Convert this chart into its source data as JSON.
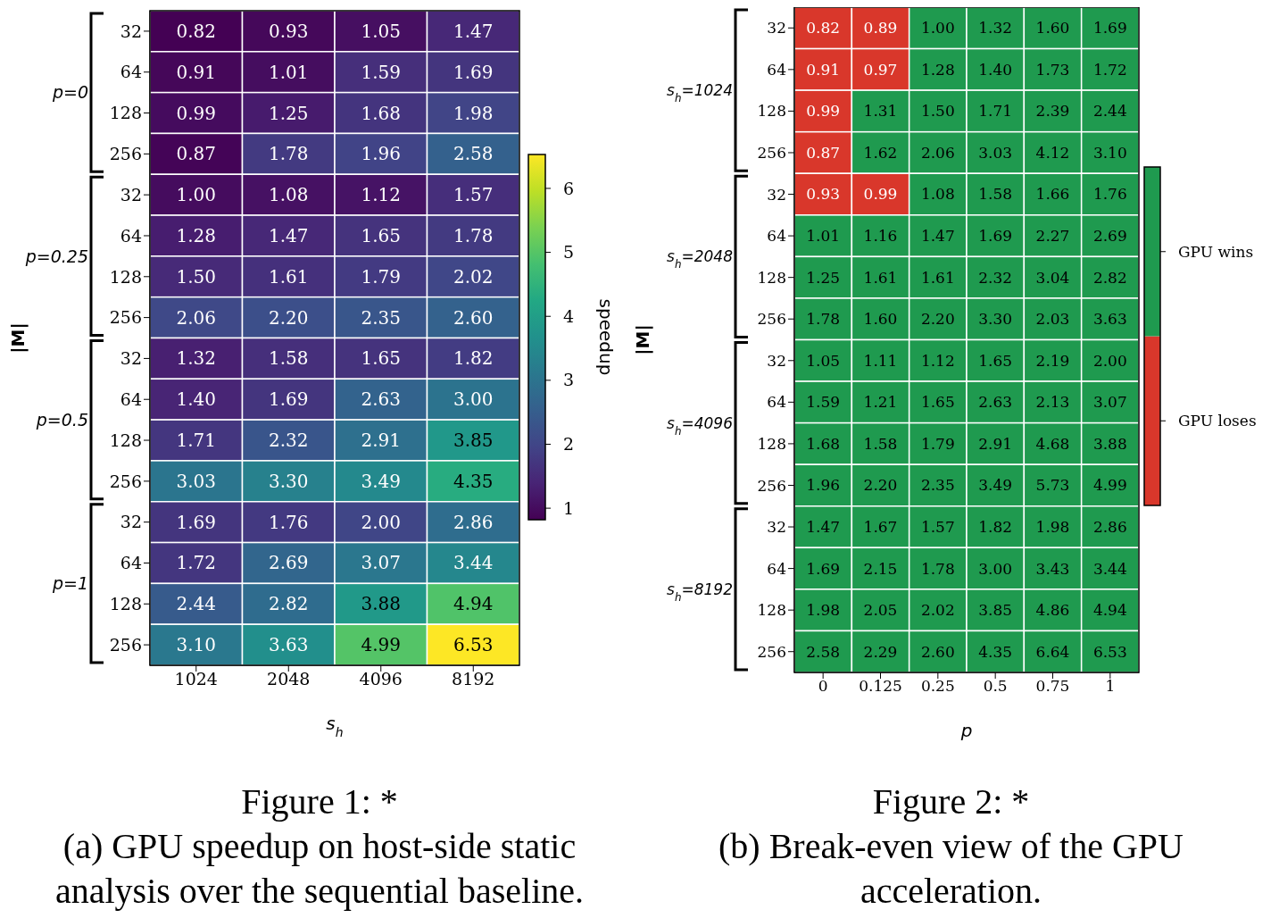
{
  "chart_data": [
    {
      "type": "heatmap",
      "title": "Figure 1: *",
      "subtitle": "(a) GPU speedup on host-side static analysis over the sequential baseline.",
      "xlabel": "s$_{h}$",
      "ylabel": "|M|",
      "clabel": "speedup",
      "categories": [
        "1024",
        "2048",
        "4096",
        "8192"
      ],
      "y_categories": [
        "32",
        "64",
        "128",
        "256",
        "32",
        "64",
        "128",
        "256",
        "32",
        "64",
        "128",
        "256",
        "32",
        "64",
        "128",
        "256"
      ],
      "annotations": [
        "p=0",
        "p=0.25",
        "p=0.5",
        "p=1"
      ],
      "cells": [
        [
          0.82,
          0.93,
          1.05,
          1.47
        ],
        [
          0.91,
          1.01,
          1.59,
          1.69
        ],
        [
          0.99,
          1.25,
          1.68,
          1.98
        ],
        [
          0.87,
          1.78,
          1.96,
          2.58
        ],
        [
          1.0,
          1.08,
          1.12,
          1.57
        ],
        [
          1.28,
          1.47,
          1.65,
          1.78
        ],
        [
          1.5,
          1.61,
          1.79,
          2.02
        ],
        [
          2.06,
          2.2,
          2.35,
          2.6
        ],
        [
          1.32,
          1.58,
          1.65,
          1.82
        ],
        [
          1.4,
          1.69,
          2.63,
          3.0
        ],
        [
          1.71,
          2.32,
          2.91,
          3.85
        ],
        [
          3.03,
          3.3,
          3.49,
          4.35
        ],
        [
          1.69,
          1.76,
          2.0,
          2.86
        ],
        [
          1.72,
          2.69,
          3.07,
          3.44
        ],
        [
          2.44,
          2.82,
          3.88,
          4.94
        ],
        [
          3.1,
          3.63,
          4.99,
          6.53
        ]
      ],
      "cell_labels": [
        [
          "0.82",
          "0.93",
          "1.05",
          "1.47"
        ],
        [
          "0.91",
          "1.01",
          "1.59",
          "1.69"
        ],
        [
          "0.99",
          "1.25",
          "1.68",
          "1.98"
        ],
        [
          "0.87",
          "1.78",
          "1.96",
          "2.58"
        ],
        [
          "1.00",
          "1.08",
          "1.12",
          "1.57"
        ],
        [
          "1.28",
          "1.47",
          "1.65",
          "1.78"
        ],
        [
          "1.50",
          "1.61",
          "1.79",
          "2.02"
        ],
        [
          "2.06",
          "2.20",
          "2.35",
          "2.60"
        ],
        [
          "1.32",
          "1.58",
          "1.65",
          "1.82"
        ],
        [
          "1.40",
          "1.69",
          "2.63",
          "3.00"
        ],
        [
          "1.71",
          "2.32",
          "2.91",
          "3.85"
        ],
        [
          "3.03",
          "3.30",
          "3.49",
          "4.35"
        ],
        [
          "1.69",
          "1.76",
          "2.00",
          "2.86"
        ],
        [
          "1.72",
          "2.69",
          "3.07",
          "3.44"
        ],
        [
          "2.44",
          "2.82",
          "3.88",
          "4.94"
        ],
        [
          "3.10",
          "3.63",
          "4.99",
          "6.53"
        ]
      ],
      "clim": [
        0.82,
        6.53
      ],
      "cticks": [
        1,
        2,
        3,
        4,
        5,
        6
      ]
    },
    {
      "type": "heatmap",
      "title": "Figure 2: *",
      "subtitle": "(b) Break-even view of the GPU acceleration.",
      "xlabel": "p",
      "ylabel": "|M|",
      "categories": [
        "0",
        "0.125",
        "0.25",
        "0.5",
        "0.75",
        "1"
      ],
      "y_categories": [
        "32",
        "64",
        "128",
        "256",
        "32",
        "64",
        "128",
        "256",
        "32",
        "64",
        "128",
        "256",
        "32",
        "64",
        "128",
        "256"
      ],
      "annotations": [
        "s$_{h}$=1024",
        "s$_{h}$=2048",
        "s$_{h}$=4096",
        "s$_{h}$=8192"
      ],
      "cells": [
        [
          0.82,
          0.89,
          1.0,
          1.32,
          1.6,
          1.69
        ],
        [
          0.91,
          0.97,
          1.28,
          1.4,
          1.73,
          1.72
        ],
        [
          0.99,
          1.31,
          1.5,
          1.71,
          2.39,
          2.44
        ],
        [
          0.87,
          1.62,
          2.06,
          3.03,
          4.12,
          3.1
        ],
        [
          0.93,
          0.99,
          1.08,
          1.58,
          1.66,
          1.76
        ],
        [
          1.01,
          1.16,
          1.47,
          1.69,
          2.27,
          2.69
        ],
        [
          1.25,
          1.61,
          1.61,
          2.32,
          3.04,
          2.82
        ],
        [
          1.78,
          1.6,
          2.2,
          3.3,
          2.03,
          3.63
        ],
        [
          1.05,
          1.11,
          1.12,
          1.65,
          2.19,
          2.0
        ],
        [
          1.59,
          1.21,
          1.65,
          2.63,
          2.13,
          3.07
        ],
        [
          1.68,
          1.58,
          1.79,
          2.91,
          4.68,
          3.88
        ],
        [
          1.96,
          2.2,
          2.35,
          3.49,
          5.73,
          4.99
        ],
        [
          1.47,
          1.67,
          1.57,
          1.82,
          1.98,
          2.86
        ],
        [
          1.69,
          2.15,
          1.78,
          3.0,
          3.43,
          3.44
        ],
        [
          1.98,
          2.05,
          2.02,
          3.85,
          4.86,
          4.94
        ],
        [
          2.58,
          2.29,
          2.6,
          4.35,
          6.64,
          6.53
        ]
      ],
      "cell_labels": [
        [
          "0.82",
          "0.89",
          "1.00",
          "1.32",
          "1.60",
          "1.69"
        ],
        [
          "0.91",
          "0.97",
          "1.28",
          "1.40",
          "1.73",
          "1.72"
        ],
        [
          "0.99",
          "1.31",
          "1.50",
          "1.71",
          "2.39",
          "2.44"
        ],
        [
          "0.87",
          "1.62",
          "2.06",
          "3.03",
          "4.12",
          "3.10"
        ],
        [
          "0.93",
          "0.99",
          "1.08",
          "1.58",
          "1.66",
          "1.76"
        ],
        [
          "1.01",
          "1.16",
          "1.47",
          "1.69",
          "2.27",
          "2.69"
        ],
        [
          "1.25",
          "1.61",
          "1.61",
          "2.32",
          "3.04",
          "2.82"
        ],
        [
          "1.78",
          "1.60",
          "2.20",
          "3.30",
          "2.03",
          "3.63"
        ],
        [
          "1.05",
          "1.11",
          "1.12",
          "1.65",
          "2.19",
          "2.00"
        ],
        [
          "1.59",
          "1.21",
          "1.65",
          "2.63",
          "2.13",
          "3.07"
        ],
        [
          "1.68",
          "1.58",
          "1.79",
          "2.91",
          "4.68",
          "3.88"
        ],
        [
          "1.96",
          "2.20",
          "2.35",
          "3.49",
          "5.73",
          "4.99"
        ],
        [
          "1.47",
          "1.67",
          "1.57",
          "1.82",
          "1.98",
          "2.86"
        ],
        [
          "1.69",
          "2.15",
          "1.78",
          "3.00",
          "3.43",
          "3.44"
        ],
        [
          "1.98",
          "2.05",
          "2.02",
          "3.85",
          "4.86",
          "4.94"
        ],
        [
          "2.58",
          "2.29",
          "2.60",
          "4.35",
          "6.64",
          "6.53"
        ]
      ],
      "colors": [
        "#d9372b",
        "#1f9a4f"
      ],
      "clim": [
        0,
        2
      ],
      "cticks": [
        {
          "value": 0.5,
          "label": "GPU loses"
        },
        {
          "value": 1.5,
          "label": "GPU wins"
        }
      ]
    }
  ]
}
